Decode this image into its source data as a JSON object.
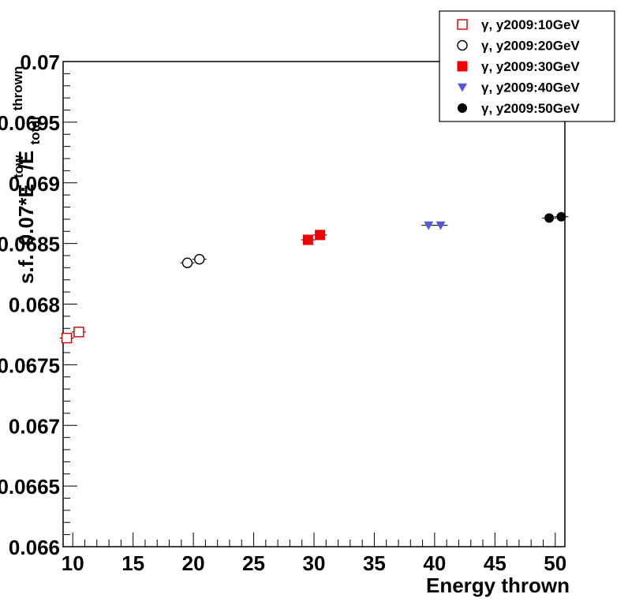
{
  "chart_data": {
    "type": "scatter",
    "xlabel": "Energy thrown",
    "ylabel": "s.f. 0.07*E_tow / E_total_thrown",
    "ylabel_parts": {
      "main": "s.f.",
      "mid": "0.07*E",
      "sup": "tow",
      "slash": "/E",
      "sub": "total",
      "sub2": "thrown"
    },
    "xlim": [
      9.2,
      50.8
    ],
    "ylim": [
      0.066,
      0.07
    ],
    "xticks": [
      10,
      15,
      20,
      25,
      30,
      35,
      40,
      45,
      50
    ],
    "xtick_labels": [
      "10",
      "15",
      "20",
      "25",
      "30",
      "35",
      "40",
      "45",
      "50"
    ],
    "yticks": [
      0.066,
      0.0665,
      0.067,
      0.0675,
      0.068,
      0.0685,
      0.069,
      0.0695,
      0.07
    ],
    "ytick_labels": [
      "0.066",
      "0.0665",
      "0.067",
      "0.0675",
      "0.068",
      "0.0685",
      "0.069",
      "0.0695",
      "0.07"
    ],
    "grid": false,
    "legend_position": "top-right",
    "series": [
      {
        "name": "γ, y2009:10GeV",
        "marker": "open-square",
        "color": "#cc0000",
        "points": [
          {
            "x": 9.5,
            "y": 0.06772
          },
          {
            "x": 10.5,
            "y": 0.06777
          }
        ]
      },
      {
        "name": "γ, y2009:20GeV",
        "marker": "open-circle",
        "color": "#000000",
        "points": [
          {
            "x": 19.5,
            "y": 0.06834
          },
          {
            "x": 20.5,
            "y": 0.06837
          }
        ]
      },
      {
        "name": "γ, y2009:30GeV",
        "marker": "filled-square",
        "color": "#ee0000",
        "points": [
          {
            "x": 29.5,
            "y": 0.06853
          },
          {
            "x": 30.5,
            "y": 0.06857
          }
        ]
      },
      {
        "name": "γ, y2009:40GeV",
        "marker": "filled-triangle-down",
        "color": "#5555dd",
        "points": [
          {
            "x": 39.5,
            "y": 0.06865
          },
          {
            "x": 40.5,
            "y": 0.06865
          }
        ]
      },
      {
        "name": "γ, y2009:50GeV",
        "marker": "filled-circle",
        "color": "#000000",
        "points": [
          {
            "x": 49.5,
            "y": 0.06871
          },
          {
            "x": 50.5,
            "y": 0.06872
          }
        ]
      }
    ]
  }
}
